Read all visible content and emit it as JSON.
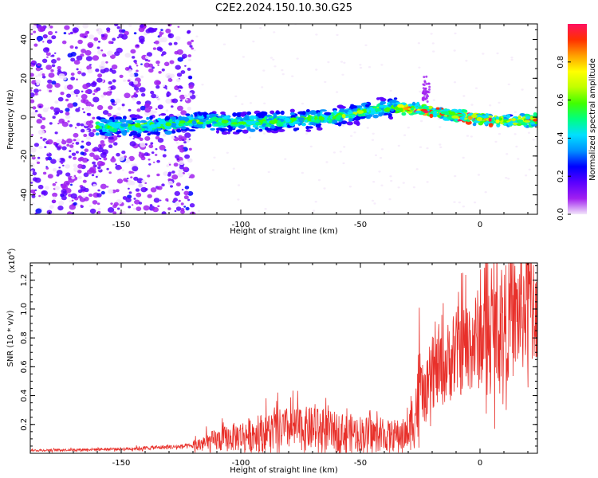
{
  "chart_data": [
    {
      "type": "heatmap",
      "title": "C2E2.2024.150.10.30.G25",
      "xlabel": "Height of straight line (km)",
      "ylabel": "Frequency (Hz)",
      "xlim": [
        -188,
        24
      ],
      "ylim": [
        -50,
        48
      ],
      "xticks": [
        -150,
        -100,
        -50,
        0
      ],
      "yticks": [
        -40,
        -20,
        0,
        20,
        40
      ],
      "colorbar": {
        "label": "Normalized spectral amplitude",
        "range": [
          0,
          1
        ],
        "ticks": [
          "0.0",
          "0.2",
          "0.4",
          "0.6",
          "0.8"
        ],
        "colors": [
          "#f2e6fa",
          "#a020f0",
          "#5a00ff",
          "#0000ff",
          "#0090ff",
          "#00e0ff",
          "#00ff80",
          "#40ff00",
          "#c0ff00",
          "#ffff00",
          "#ffa000",
          "#ff3000",
          "#ff1060"
        ]
      },
      "ridge": {
        "x": [
          -155,
          -130,
          -120,
          -100,
          -80,
          -60,
          -45,
          -35,
          -20,
          0,
          15,
          24
        ],
        "frequency": [
          -5,
          -4,
          -2,
          -3,
          -2,
          0,
          4,
          5,
          3,
          -1,
          -2,
          -1
        ]
      },
      "grid": false,
      "legend": "colorbar-right"
    },
    {
      "type": "line",
      "xlabel": "Height of straight line (km)",
      "ylabel": "SNR (10 * v/v)",
      "y_multiplier": "(x10",
      "y_multiplier_exp": "4",
      "y_multiplier_close": ")",
      "xlim": [
        -188,
        24
      ],
      "ylim": [
        0,
        1.32
      ],
      "xticks": [
        -150,
        -100,
        -50,
        0
      ],
      "yticks": [
        0.2,
        0.4,
        0.6,
        0.8,
        1.0,
        1.2
      ],
      "ytick_labels": [
        "0.2",
        "0.4",
        "0.6",
        "0.8",
        "1.0",
        "1.2"
      ],
      "line_color": "#e8302a",
      "trend": {
        "x": [
          -188,
          -150,
          -120,
          -110,
          -100,
          -90,
          -80,
          -70,
          -60,
          -50,
          -40,
          -30,
          -27,
          -25,
          -22,
          -20,
          -15,
          -10,
          -5,
          0,
          5,
          10,
          15,
          20,
          24
        ],
        "y": [
          0.02,
          0.03,
          0.05,
          0.09,
          0.12,
          0.15,
          0.17,
          0.17,
          0.15,
          0.14,
          0.12,
          0.13,
          0.3,
          0.45,
          0.35,
          0.55,
          0.6,
          0.7,
          0.75,
          0.8,
          0.85,
          0.9,
          0.95,
          1.05,
          1.08
        ]
      },
      "grid": false
    }
  ]
}
